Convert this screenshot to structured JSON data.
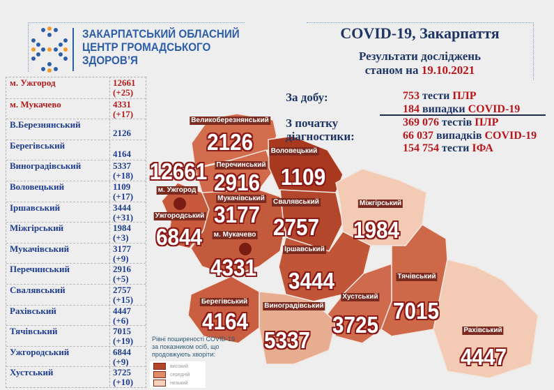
{
  "header": {
    "org_line1": "ЗАКАРПАТСЬКИЙ ОБЛАСНИЙ",
    "org_line2": "ЦЕНТР ГРОМАДСЬКОГО",
    "org_line3": "ЗДОРОВ’Я",
    "title": "COVID-19, Закарпаття",
    "subtitle_line1": "Результати досліджень",
    "subtitle_prefix": "станом на",
    "date": "19.10.2021"
  },
  "stats": {
    "daily_label": "За добу:",
    "since_label_1": "З початку",
    "since_label_2": "діагностики:",
    "daily": [
      {
        "num": "753",
        "text": "тести",
        "tag": "ПЛР"
      },
      {
        "num": "184",
        "text": "випадки",
        "tag": "COVID-19"
      }
    ],
    "total": [
      {
        "num": "369 076",
        "text": "тестів",
        "tag": "ПЛР"
      },
      {
        "num": "66 037",
        "text": "випадків",
        "tag": "COVID-19"
      },
      {
        "num": "154 754",
        "text": "тести",
        "tag": "ІФА"
      }
    ]
  },
  "table": [
    {
      "name": "м. Ужгород",
      "total": "12661",
      "delta": "(+25)",
      "city": true
    },
    {
      "name": "м. Мукачево",
      "total": "4331",
      "delta": "(+17)",
      "city": true
    },
    {
      "name": "В.Березнянський",
      "total": "2126",
      "delta": ""
    },
    {
      "name": "Берегівський",
      "total": "4164",
      "delta": ""
    },
    {
      "name": "Виноградівський",
      "total": "5337",
      "delta": "(+18)"
    },
    {
      "name": "Воловецький",
      "total": "1109",
      "delta": "(+17)"
    },
    {
      "name": "Іршавський",
      "total": "3444",
      "delta": "(+31)"
    },
    {
      "name": "Міжгірський",
      "total": "1984",
      "delta": "(+3)"
    },
    {
      "name": "Мукачівський",
      "total": "3177",
      "delta": "(+9)"
    },
    {
      "name": "Перечинський",
      "total": "2916",
      "delta": "(+5)"
    },
    {
      "name": "Свалявський",
      "total": "2757",
      "delta": "(+15)"
    },
    {
      "name": "Рахівський",
      "total": "4447",
      "delta": "(+6)"
    },
    {
      "name": "Тячівський",
      "total": "7015",
      "delta": "(+19)"
    },
    {
      "name": "Ужгородський",
      "total": "6844",
      "delta": "(+9)"
    },
    {
      "name": "Хустський",
      "total": "3725",
      "delta": "(+10)"
    }
  ],
  "map": [
    {
      "id": "velykyi-bereznyi",
      "label": "Великоберезнянський",
      "value": "2126"
    },
    {
      "id": "volovets",
      "label": "Воловецький",
      "value": "1109"
    },
    {
      "id": "perechyn",
      "label": "Перечинський",
      "value": "2916"
    },
    {
      "id": "uzhhorod-city",
      "label": "м. Ужгород",
      "value": "12661"
    },
    {
      "id": "mukachivskyi",
      "label": "Мукачівський",
      "value": "3177"
    },
    {
      "id": "svaliava",
      "label": "Свалявський",
      "value": "2757"
    },
    {
      "id": "uzhhorodskyi",
      "label": "Ужгородський",
      "value": "6844"
    },
    {
      "id": "mukachevo-city",
      "label": "м. Мукачево",
      "value": "4331"
    },
    {
      "id": "mizhhiria",
      "label": "Міжгірський",
      "value": "1984"
    },
    {
      "id": "irshava",
      "label": "Іршавський",
      "value": "3444"
    },
    {
      "id": "khust",
      "label": "Хустський",
      "value": "3725"
    },
    {
      "id": "tiachiv",
      "label": "Тячівський",
      "value": "7015"
    },
    {
      "id": "berehove",
      "label": "Берегівський",
      "value": "4164"
    },
    {
      "id": "vynohradiv",
      "label": "Виноградівський",
      "value": "5337"
    },
    {
      "id": "rakhiv",
      "label": "Рахівський",
      "value": "4447"
    }
  ],
  "legend": {
    "title": "Рівні поширеності COVID-19 за показником осіб, що продовжують хворіти:",
    "items": [
      {
        "label": "високий",
        "color": "#b5452a"
      },
      {
        "label": "середній",
        "color": "#e08a68"
      },
      {
        "label": "низький",
        "color": "#f6d2bd"
      }
    ]
  },
  "colors": {
    "high": "#b5452a",
    "medium": "#d46c4c",
    "low": "#f3cbb4",
    "blue": "#1f3566",
    "red": "#b8161b"
  }
}
